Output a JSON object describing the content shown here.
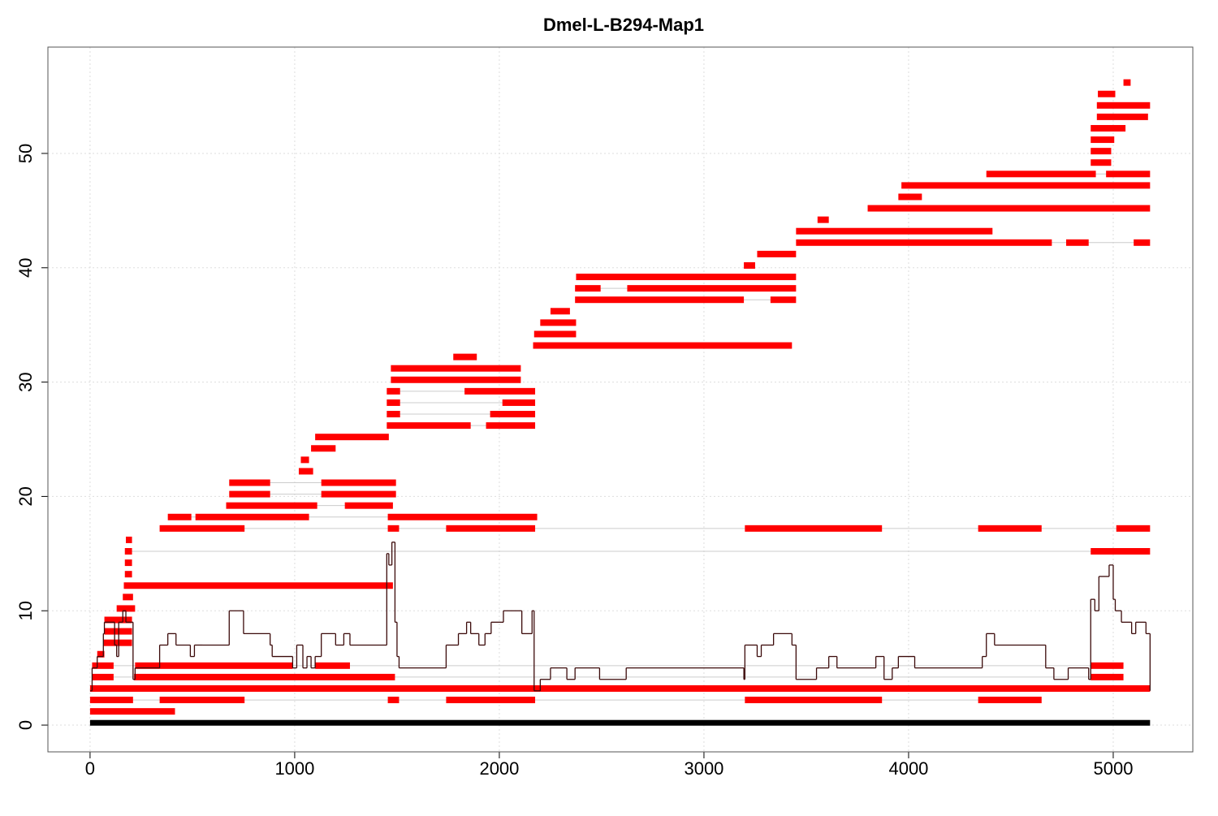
{
  "chart_data": {
    "type": "segments",
    "title": "Dmel-L-B294-Map1",
    "xlim": [
      -206,
      5389
    ],
    "ylim": [
      -2.34,
      59.3
    ],
    "xticks": [
      0,
      1000,
      2000,
      3000,
      4000,
      5000
    ],
    "yticks": [
      0,
      10,
      20,
      30,
      40,
      50
    ],
    "grid": true,
    "tracks": [
      {
        "color": "#000000",
        "rows": [
          {
            "y": 0.2,
            "segments": [
              [
                0,
                5180
              ]
            ]
          }
        ]
      },
      {
        "color": "#ff0000",
        "rows": [
          {
            "y": 1.2,
            "segments": [
              [
                0,
                415
              ]
            ]
          },
          {
            "y": 2.2,
            "segments": [
              [
                0,
                210
              ],
              [
                340,
                755
              ],
              [
                1455,
                1510
              ],
              [
                1740,
                2175
              ],
              [
                3200,
                3870
              ],
              [
                4340,
                4650
              ]
            ]
          },
          {
            "y": 3.2,
            "segments": [
              [
                0,
                5180
              ]
            ]
          },
          {
            "y": 4.2,
            "segments": [
              [
                10,
                115
              ],
              [
                215,
                1490
              ],
              [
                4890,
                5050
              ]
            ]
          },
          {
            "y": 5.2,
            "segments": [
              [
                10,
                115
              ],
              [
                220,
                990
              ],
              [
                1100,
                1270
              ],
              [
                4890,
                5050
              ]
            ]
          },
          {
            "y": 6.2,
            "segments": [
              [
                35,
                70
              ]
            ]
          },
          {
            "y": 7.2,
            "segments": [
              [
                65,
                205
              ]
            ]
          },
          {
            "y": 8.2,
            "segments": [
              [
                70,
                205
              ]
            ]
          },
          {
            "y": 9.2,
            "segments": [
              [
                70,
                205
              ]
            ]
          },
          {
            "y": 10.2,
            "segments": [
              [
                130,
                220
              ]
            ]
          },
          {
            "y": 11.2,
            "segments": [
              [
                160,
                210
              ]
            ]
          },
          {
            "y": 12.2,
            "segments": [
              [
                165,
                1480
              ]
            ]
          },
          {
            "y": 13.2,
            "segments": [
              [
                170,
                205
              ]
            ]
          },
          {
            "y": 14.2,
            "segments": [
              [
                170,
                205
              ]
            ]
          },
          {
            "y": 15.2,
            "segments": [
              [
                170,
                205
              ],
              [
                4890,
                5180
              ]
            ]
          },
          {
            "y": 16.2,
            "segments": [
              [
                175,
                205
              ]
            ]
          },
          {
            "y": 17.2,
            "segments": [
              [
                340,
                755
              ],
              [
                1455,
                1510
              ],
              [
                1740,
                2175
              ],
              [
                3200,
                3870
              ],
              [
                4340,
                4650
              ],
              [
                5015,
                5180
              ]
            ]
          },
          {
            "y": 18.2,
            "segments": [
              [
                380,
                495
              ],
              [
                515,
                1070
              ],
              [
                1455,
                2185
              ]
            ]
          },
          {
            "y": 19.2,
            "segments": [
              [
                665,
                1110
              ],
              [
                1245,
                1480
              ]
            ]
          },
          {
            "y": 20.2,
            "segments": [
              [
                680,
                880
              ],
              [
                1130,
                1495
              ]
            ]
          },
          {
            "y": 21.2,
            "segments": [
              [
                680,
                880
              ],
              [
                1130,
                1495
              ]
            ]
          },
          {
            "y": 22.2,
            "segments": [
              [
                1020,
                1090
              ]
            ]
          },
          {
            "y": 23.2,
            "segments": [
              [
                1030,
                1070
              ]
            ]
          },
          {
            "y": 24.2,
            "segments": [
              [
                1080,
                1200
              ]
            ]
          },
          {
            "y": 25.2,
            "segments": [
              [
                1100,
                1460
              ]
            ]
          },
          {
            "y": 26.2,
            "segments": [
              [
                1450,
                1860
              ],
              [
                1935,
                2175
              ]
            ]
          },
          {
            "y": 27.2,
            "segments": [
              [
                1450,
                1515
              ],
              [
                1955,
                2175
              ]
            ]
          },
          {
            "y": 28.2,
            "segments": [
              [
                1450,
                1515
              ],
              [
                2015,
                2175
              ]
            ]
          },
          {
            "y": 29.2,
            "segments": [
              [
                1450,
                1515
              ],
              [
                1830,
                2175
              ]
            ]
          },
          {
            "y": 30.2,
            "segments": [
              [
                1470,
                2105
              ]
            ]
          },
          {
            "y": 31.2,
            "segments": [
              [
                1470,
                2105
              ]
            ]
          },
          {
            "y": 32.2,
            "segments": [
              [
                1775,
                1890
              ]
            ]
          },
          {
            "y": 33.2,
            "segments": [
              [
                2165,
                3430
              ]
            ]
          },
          {
            "y": 34.2,
            "segments": [
              [
                2170,
                2375
              ]
            ]
          },
          {
            "y": 35.2,
            "segments": [
              [
                2200,
                2375
              ]
            ]
          },
          {
            "y": 36.2,
            "segments": [
              [
                2250,
                2345
              ]
            ]
          },
          {
            "y": 37.2,
            "segments": [
              [
                2370,
                3195
              ],
              [
                3325,
                3450
              ]
            ]
          },
          {
            "y": 38.2,
            "segments": [
              [
                2370,
                2495
              ],
              [
                2625,
                3450
              ]
            ]
          },
          {
            "y": 39.2,
            "segments": [
              [
                2375,
                3450
              ]
            ]
          },
          {
            "y": 40.2,
            "segments": [
              [
                3195,
                3250
              ]
            ]
          },
          {
            "y": 41.2,
            "segments": [
              [
                3260,
                3450
              ]
            ]
          },
          {
            "y": 42.2,
            "segments": [
              [
                3450,
                4700
              ],
              [
                4770,
                4880
              ],
              [
                5100,
                5180
              ]
            ]
          },
          {
            "y": 43.2,
            "segments": [
              [
                3450,
                4410
              ]
            ]
          },
          {
            "y": 44.2,
            "segments": [
              [
                3555,
                3610
              ]
            ]
          },
          {
            "y": 45.2,
            "segments": [
              [
                3800,
                5180
              ]
            ]
          },
          {
            "y": 46.2,
            "segments": [
              [
                3950,
                4065
              ]
            ]
          },
          {
            "y": 47.2,
            "segments": [
              [
                3965,
                5180
              ]
            ]
          },
          {
            "y": 48.2,
            "segments": [
              [
                4380,
                4915
              ],
              [
                4965,
                5180
              ]
            ]
          },
          {
            "y": 49.2,
            "segments": [
              [
                4890,
                4990
              ]
            ]
          },
          {
            "y": 50.2,
            "segments": [
              [
                4890,
                4990
              ]
            ]
          },
          {
            "y": 51.2,
            "segments": [
              [
                4890,
                5005
              ]
            ]
          },
          {
            "y": 52.2,
            "segments": [
              [
                4890,
                5060
              ]
            ]
          },
          {
            "y": 53.2,
            "segments": [
              [
                4920,
                5170
              ]
            ]
          },
          {
            "y": 54.2,
            "segments": [
              [
                4920,
                5180
              ]
            ]
          },
          {
            "y": 55.2,
            "segments": [
              [
                4925,
                5010
              ]
            ]
          },
          {
            "y": 56.2,
            "segments": [
              [
                5050,
                5085
              ]
            ]
          }
        ]
      }
    ],
    "coverage": {
      "color": "#3b0a0a",
      "x": [
        0,
        10,
        35,
        65,
        70,
        120,
        130,
        140,
        160,
        175,
        200,
        210,
        220,
        340,
        380,
        420,
        490,
        510,
        550,
        680,
        750,
        880,
        890,
        990,
        1010,
        1040,
        1060,
        1080,
        1100,
        1130,
        1200,
        1240,
        1270,
        1450,
        1460,
        1475,
        1490,
        1500,
        1510,
        1740,
        1800,
        1840,
        1860,
        1900,
        1930,
        1960,
        2020,
        2110,
        2160,
        2170,
        2190,
        2200,
        2250,
        2330,
        2370,
        2490,
        2620,
        3195,
        3200,
        3260,
        3280,
        3340,
        3430,
        3450,
        3550,
        3610,
        3650,
        3840,
        3880,
        3920,
        3950,
        4030,
        4360,
        4380,
        4420,
        4670,
        4710,
        4780,
        4880,
        4890,
        4910,
        4930,
        4980,
        5000,
        5010,
        5040,
        5090,
        5110,
        5160,
        5180
      ],
      "values": [
        3,
        5,
        6,
        8,
        9,
        7,
        6,
        9,
        10,
        9,
        9,
        4,
        5,
        7,
        8,
        7,
        6,
        7,
        7,
        10,
        8,
        7,
        6,
        5,
        7,
        5,
        6,
        5,
        6,
        8,
        7,
        8,
        7,
        15,
        14,
        16,
        9,
        6,
        5,
        7,
        8,
        9,
        8,
        7,
        8,
        9,
        10,
        8,
        10,
        3,
        3,
        4,
        5,
        4,
        5,
        4,
        5,
        4,
        7,
        6,
        7,
        8,
        7,
        4,
        5,
        6,
        5,
        6,
        4,
        5,
        6,
        5,
        6,
        8,
        7,
        5,
        4,
        5,
        4,
        11,
        10,
        13,
        14,
        11,
        10,
        9,
        8,
        9,
        8,
        3
      ]
    }
  }
}
